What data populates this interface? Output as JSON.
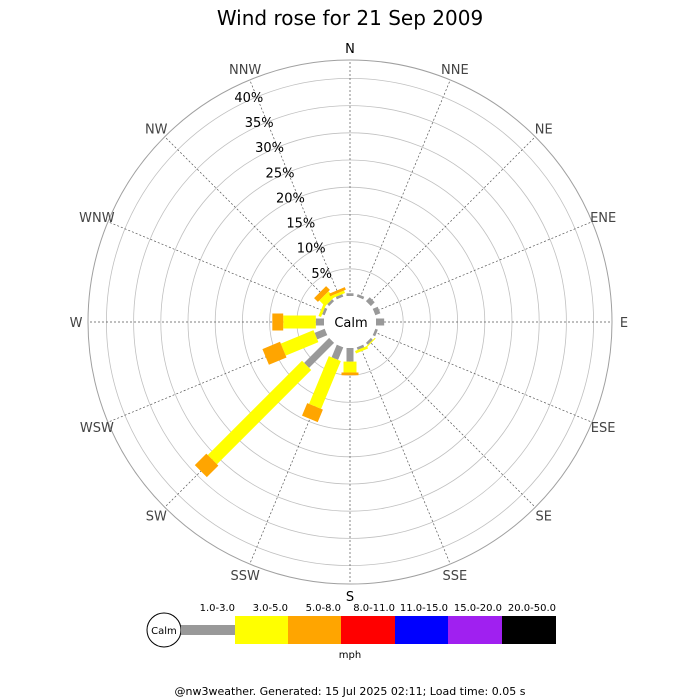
{
  "title": "Wind rose for 21 Sep 2009",
  "footer": "@nw3weather. Generated: 15 Jul 2025 02:11; Load time: 0.05 s",
  "calm_label": "Calm",
  "legend": {
    "unit": "mph",
    "calm_label": "Calm",
    "bins": [
      {
        "label": "1.0-3.0",
        "color": "#999999"
      },
      {
        "label": "3.0-5.0",
        "color": "#ffff00"
      },
      {
        "label": "5.0-8.0",
        "color": "#ffa500"
      },
      {
        "label": "8.0-11.0",
        "color": "#ff0000"
      },
      {
        "label": "11.0-15.0",
        "color": "#0000ff"
      },
      {
        "label": "15.0-20.0",
        "color": "#a020f0"
      },
      {
        "label": "20.0-50.0",
        "color": "#000000"
      }
    ]
  },
  "chart_data": {
    "type": "wind-rose",
    "title": "Wind rose for 21 Sep 2009",
    "unit": "mph",
    "directions": [
      "N",
      "NNE",
      "NE",
      "ENE",
      "E",
      "ESE",
      "SE",
      "SSE",
      "S",
      "SSW",
      "SW",
      "WSW",
      "W",
      "WNW",
      "NW",
      "NNW"
    ],
    "radial_ticks": [
      "5%",
      "10%",
      "15%",
      "20%",
      "25%",
      "30%",
      "35%",
      "40%"
    ],
    "radial_max": 40,
    "speed_bins": [
      "1.0-3.0",
      "3.0-5.0",
      "5.0-8.0",
      "8.0-11.0",
      "11.0-15.0",
      "15.0-20.0",
      "20.0-50.0"
    ],
    "bin_colors": [
      "#999999",
      "#ffff00",
      "#ffa500",
      "#ff0000",
      "#0000ff",
      "#a020f0",
      "#000000"
    ],
    "frequencies_percent": {
      "N": [
        0.5,
        0,
        0,
        0,
        0,
        0,
        0
      ],
      "NNE": [
        0.5,
        0,
        0,
        0,
        0,
        0,
        0
      ],
      "NE": [
        1.0,
        0,
        0,
        0,
        0,
        0,
        0
      ],
      "ENE": [
        1.0,
        0,
        0,
        0,
        0,
        0,
        0
      ],
      "E": [
        1.5,
        0,
        0,
        0,
        0,
        0,
        0
      ],
      "ESE": [
        0.5,
        0,
        0,
        0,
        0,
        0,
        0
      ],
      "SE": [
        0.5,
        0.2,
        0,
        0,
        0,
        0,
        0
      ],
      "SSE": [
        0.5,
        0.5,
        0,
        0,
        0,
        0,
        0
      ],
      "S": [
        2.5,
        2.0,
        0.5,
        0,
        0,
        0,
        0
      ],
      "SSW": [
        2.5,
        9.5,
        2.5,
        0,
        0,
        0,
        0
      ],
      "SW": [
        6.5,
        24.5,
        3.0,
        0,
        0,
        0,
        0
      ],
      "WSW": [
        2.0,
        6.5,
        3.5,
        0,
        0,
        0,
        0
      ],
      "W": [
        1.5,
        6.0,
        2.0,
        0,
        0,
        0,
        0
      ],
      "WNW": [
        0.5,
        0.5,
        0,
        0,
        0,
        0,
        0
      ],
      "NW": [
        0.5,
        1.5,
        1.0,
        0,
        0,
        0,
        0
      ],
      "NNW": [
        0.5,
        0.5,
        0.5,
        0,
        0,
        0,
        0
      ]
    },
    "grid": true,
    "legend_position": "bottom"
  }
}
